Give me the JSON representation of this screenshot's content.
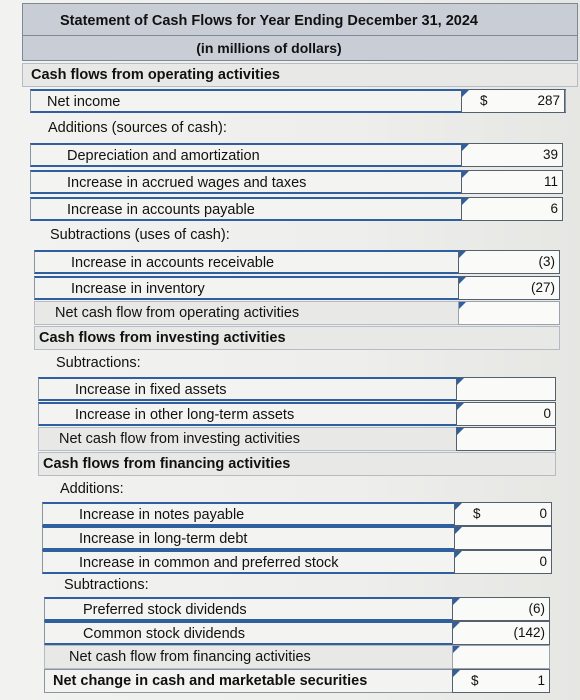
{
  "header": {
    "title": "Statement of Cash Flows for Year Ending December 31, 2024",
    "subtitle": "(in millions of dollars)"
  },
  "rows": {
    "cfo": "Cash flows from operating activities",
    "net_income": {
      "label": "Net income",
      "currency": "$",
      "value": "287"
    },
    "additions_op": "Additions (sources of cash):",
    "depreciation": {
      "label": "Depreciation and amortization",
      "value": "39"
    },
    "accrued": {
      "label": "Increase in accrued wages and taxes",
      "value": "11"
    },
    "payable": {
      "label": "Increase in accounts payable",
      "value": "6"
    },
    "subtractions_op": "Subtractions (uses of cash):",
    "receivable": {
      "label": "Increase in accounts receivable",
      "value": "(3)"
    },
    "inventory": {
      "label": "Increase in inventory",
      "value": "(27)"
    },
    "net_op": {
      "label": "Net cash flow from operating activities",
      "value": ""
    },
    "cfi": "Cash flows from investing activities",
    "subtractions_inv": "Subtractions:",
    "fixed": {
      "label": "Increase in fixed assets",
      "value": ""
    },
    "other_lt": {
      "label": "Increase in other long-term assets",
      "value": "0"
    },
    "net_inv": {
      "label": "Net cash flow from investing activities",
      "value": ""
    },
    "cff": "Cash flows from financing activities",
    "additions_fin": "Additions:",
    "notes": {
      "label": "Increase in notes payable",
      "currency": "$",
      "value": "0"
    },
    "ltdebt": {
      "label": "Increase in long-term debt",
      "value": ""
    },
    "stock": {
      "label": "Increase in common and preferred stock",
      "value": "0"
    },
    "subtractions_fin": "Subtractions:",
    "pref_div": {
      "label": "Preferred stock dividends",
      "value": "(6)"
    },
    "common_div": {
      "label": "Common stock dividends",
      "value": "(142)"
    },
    "net_fin": {
      "label": "Net cash flow from financing activities",
      "value": ""
    },
    "net_change": {
      "label": "Net change in cash and marketable securities",
      "currency": "$",
      "value": "1"
    }
  }
}
